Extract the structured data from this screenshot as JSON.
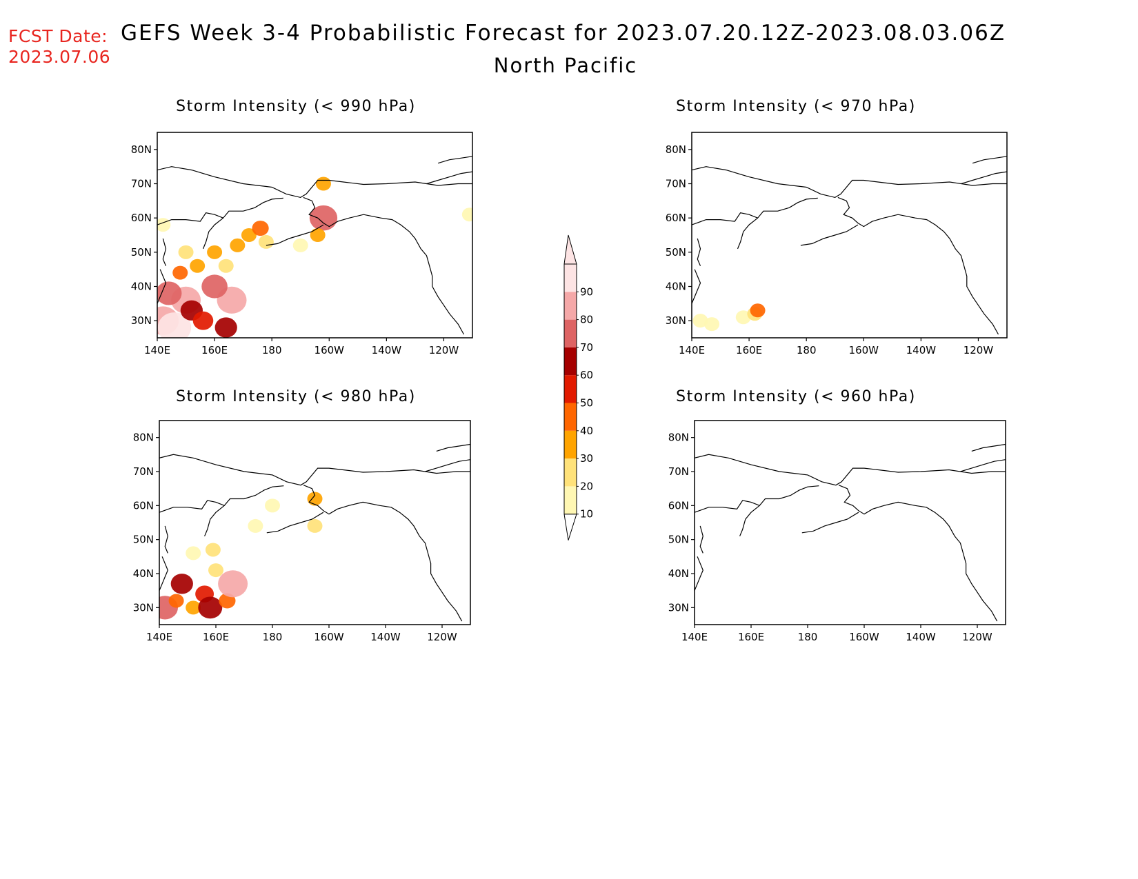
{
  "header": {
    "fcst_label": "FCST Date:",
    "fcst_date": "2023.07.06",
    "title": "GEFS Week 3-4 Probabilistic Forecast for 2023.07.20.12Z-2023.08.03.06Z",
    "subtitle": "North Pacific"
  },
  "panels": [
    {
      "id": "p990",
      "title": "Storm Intensity (< 990 hPa)"
    },
    {
      "id": "p970",
      "title": "Storm Intensity (< 970 hPa)"
    },
    {
      "id": "p980",
      "title": "Storm Intensity (< 980 hPa)"
    },
    {
      "id": "p960",
      "title": "Storm Intensity (< 960 hPa)"
    }
  ],
  "axes": {
    "lat_labels": [
      "80N",
      "70N",
      "60N",
      "50N",
      "40N",
      "30N"
    ],
    "lon_labels": [
      "140E",
      "160E",
      "180",
      "160W",
      "140W",
      "120W"
    ],
    "lat_values": [
      80,
      70,
      60,
      50,
      40,
      30
    ],
    "lon_values": [
      140,
      160,
      180,
      200,
      220,
      240
    ],
    "lat_range": [
      25,
      85
    ],
    "lon_range": [
      140,
      250
    ]
  },
  "colorbar": {
    "labels": [
      "10",
      "20",
      "30",
      "40",
      "50",
      "60",
      "70",
      "80",
      "90"
    ],
    "colors": [
      "#fff7b3",
      "#ffe27a",
      "#ffa400",
      "#ff6600",
      "#e21a00",
      "#a50000",
      "#de6464",
      "#f5a8a8",
      "#fde4e4"
    ]
  },
  "chart_data": {
    "type": "heatmap",
    "variable": "probability of storm intensity below threshold",
    "units": "%",
    "levels": [
      10,
      20,
      30,
      40,
      50,
      60,
      70,
      80,
      90
    ],
    "panels": [
      {
        "threshold_hpa": 990,
        "cells": [
          {
            "lon": 142,
            "lat": 30,
            "p": 85
          },
          {
            "lon": 146,
            "lat": 28,
            "p": 90
          },
          {
            "lon": 150,
            "lat": 36,
            "p": 80
          },
          {
            "lon": 144,
            "lat": 38,
            "p": 70
          },
          {
            "lon": 152,
            "lat": 33,
            "p": 60
          },
          {
            "lon": 156,
            "lat": 30,
            "p": 55
          },
          {
            "lon": 164,
            "lat": 28,
            "p": 60
          },
          {
            "lon": 166,
            "lat": 36,
            "p": 80
          },
          {
            "lon": 160,
            "lat": 40,
            "p": 70
          },
          {
            "lon": 148,
            "lat": 44,
            "p": 40
          },
          {
            "lon": 154,
            "lat": 46,
            "p": 30
          },
          {
            "lon": 160,
            "lat": 50,
            "p": 35
          },
          {
            "lon": 164,
            "lat": 46,
            "p": 25
          },
          {
            "lon": 168,
            "lat": 52,
            "p": 30
          },
          {
            "lon": 172,
            "lat": 55,
            "p": 30
          },
          {
            "lon": 176,
            "lat": 57,
            "p": 45
          },
          {
            "lon": 178,
            "lat": 53,
            "p": 20
          },
          {
            "lon": 142,
            "lat": 58,
            "p": 15
          },
          {
            "lon": 150,
            "lat": 50,
            "p": 20
          },
          {
            "lon": 198,
            "lat": 60,
            "p": 75
          },
          {
            "lon": 198,
            "lat": 70,
            "p": 30
          },
          {
            "lon": 196,
            "lat": 55,
            "p": 35
          },
          {
            "lon": 190,
            "lat": 52,
            "p": 15
          },
          {
            "lon": 249,
            "lat": 61,
            "p": 15
          }
        ]
      },
      {
        "threshold_hpa": 970,
        "cells": [
          {
            "lon": 143,
            "lat": 30,
            "p": 15
          },
          {
            "lon": 147,
            "lat": 29,
            "p": 15
          },
          {
            "lon": 158,
            "lat": 31,
            "p": 15
          },
          {
            "lon": 162,
            "lat": 32,
            "p": 20
          },
          {
            "lon": 163,
            "lat": 33,
            "p": 40
          }
        ]
      },
      {
        "threshold_hpa": 980,
        "cells": [
          {
            "lon": 142,
            "lat": 30,
            "p": 70
          },
          {
            "lon": 146,
            "lat": 32,
            "p": 40
          },
          {
            "lon": 148,
            "lat": 37,
            "p": 60
          },
          {
            "lon": 152,
            "lat": 30,
            "p": 35
          },
          {
            "lon": 156,
            "lat": 34,
            "p": 50
          },
          {
            "lon": 158,
            "lat": 30,
            "p": 65
          },
          {
            "lon": 164,
            "lat": 32,
            "p": 45
          },
          {
            "lon": 166,
            "lat": 37,
            "p": 80
          },
          {
            "lon": 160,
            "lat": 41,
            "p": 20
          },
          {
            "lon": 152,
            "lat": 46,
            "p": 15
          },
          {
            "lon": 159,
            "lat": 47,
            "p": 20
          },
          {
            "lon": 174,
            "lat": 54,
            "p": 15
          },
          {
            "lon": 180,
            "lat": 60,
            "p": 15
          },
          {
            "lon": 195,
            "lat": 62,
            "p": 30
          },
          {
            "lon": 195,
            "lat": 54,
            "p": 25
          }
        ]
      },
      {
        "threshold_hpa": 960,
        "cells": []
      }
    ]
  }
}
